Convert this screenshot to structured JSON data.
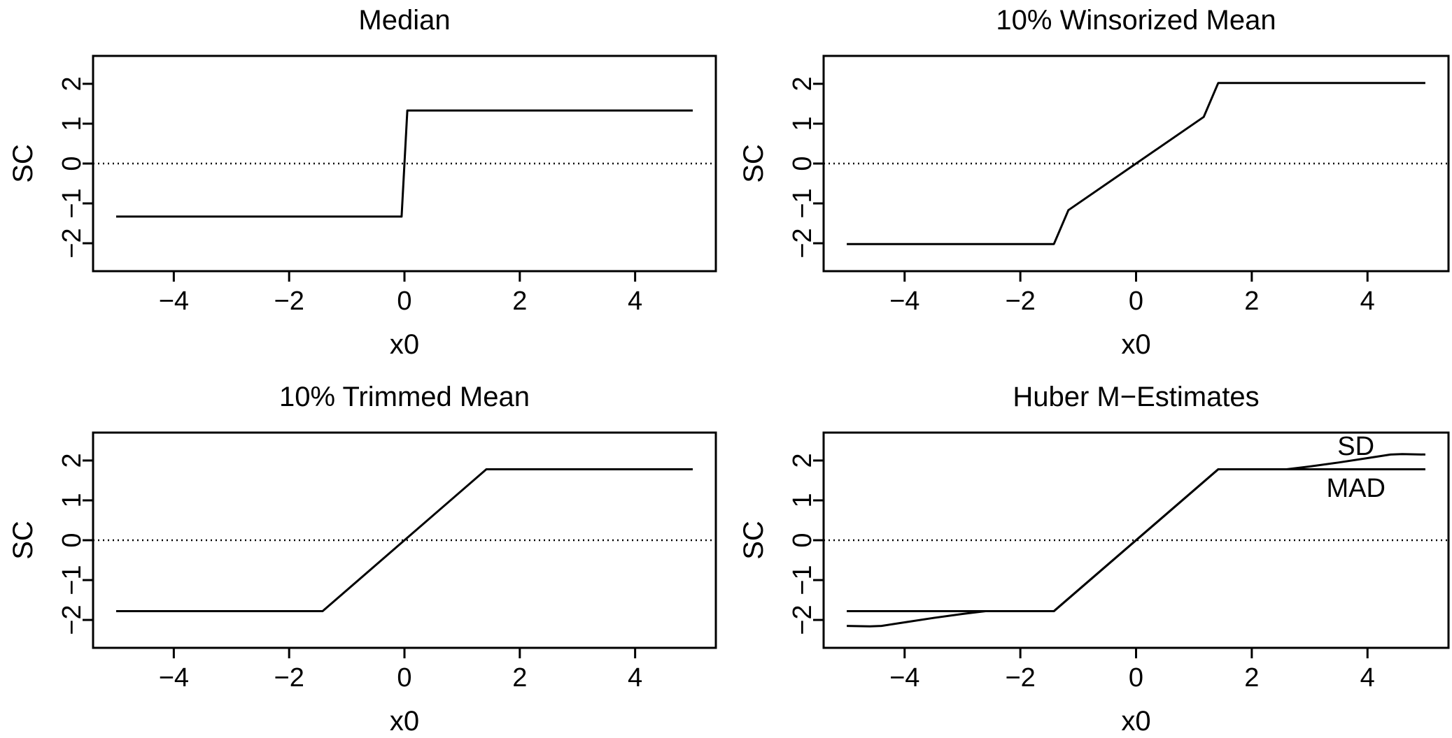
{
  "chart_data": [
    {
      "type": "line",
      "title": "Median",
      "xlabel": "x0",
      "ylabel": "SC",
      "xlim": [
        -5.4,
        5.4
      ],
      "ylim": [
        -2.7,
        2.7
      ],
      "xticks": [
        -4,
        -2,
        0,
        2,
        4
      ],
      "yticks": [
        -2,
        -1,
        0,
        1,
        2
      ],
      "xtick_labels": [
        "−4",
        "−2",
        "0",
        "2",
        "4"
      ],
      "ytick_labels": [
        "−2",
        "−1",
        "0",
        "1",
        "2"
      ],
      "reference_line": {
        "y": 0,
        "style": "dotted"
      },
      "series": [
        {
          "x": [
            -5,
            -0.05,
            0.05,
            5
          ],
          "y": [
            -1.33,
            -1.33,
            1.33,
            1.33
          ]
        }
      ],
      "annotations": []
    },
    {
      "type": "line",
      "title": "10% Winsorized Mean",
      "xlabel": "x0",
      "ylabel": "SC",
      "xlim": [
        -5.4,
        5.4
      ],
      "ylim": [
        -2.7,
        2.7
      ],
      "xticks": [
        -4,
        -2,
        0,
        2,
        4
      ],
      "yticks": [
        -2,
        -1,
        0,
        1,
        2
      ],
      "xtick_labels": [
        "−4",
        "−2",
        "0",
        "2",
        "4"
      ],
      "ytick_labels": [
        "−2",
        "−1",
        "0",
        "1",
        "2"
      ],
      "reference_line": {
        "y": 0,
        "style": "dotted"
      },
      "series": [
        {
          "x": [
            -5,
            -1.42,
            -1.17,
            1.17,
            1.42,
            5
          ],
          "y": [
            -2.02,
            -2.02,
            -1.17,
            1.17,
            2.02,
            2.02
          ]
        }
      ],
      "annotations": []
    },
    {
      "type": "line",
      "title": "10% Trimmed Mean",
      "xlabel": "x0",
      "ylabel": "SC",
      "xlim": [
        -5.4,
        5.4
      ],
      "ylim": [
        -2.7,
        2.7
      ],
      "xticks": [
        -4,
        -2,
        0,
        2,
        4
      ],
      "yticks": [
        -2,
        -1,
        0,
        1,
        2
      ],
      "xtick_labels": [
        "−4",
        "−2",
        "0",
        "2",
        "4"
      ],
      "ytick_labels": [
        "−2",
        "−1",
        "0",
        "1",
        "2"
      ],
      "reference_line": {
        "y": 0,
        "style": "dotted"
      },
      "series": [
        {
          "x": [
            -5,
            -1.42,
            1.42,
            5
          ],
          "y": [
            -1.78,
            -1.78,
            1.78,
            1.78
          ]
        }
      ],
      "annotations": []
    },
    {
      "type": "line",
      "title": "Huber M−Estimates",
      "xlabel": "x0",
      "ylabel": "SC",
      "xlim": [
        -5.4,
        5.4
      ],
      "ylim": [
        -2.7,
        2.7
      ],
      "xticks": [
        -4,
        -2,
        0,
        2,
        4
      ],
      "yticks": [
        -2,
        -1,
        0,
        1,
        2
      ],
      "xtick_labels": [
        "−4",
        "−2",
        "0",
        "2",
        "4"
      ],
      "ytick_labels": [
        "−2",
        "−1",
        "0",
        "1",
        "2"
      ],
      "reference_line": {
        "y": 0,
        "style": "dotted"
      },
      "series": [
        {
          "x": [
            -5,
            -1.42,
            1.42,
            5
          ],
          "y": [
            -1.78,
            -1.78,
            1.78,
            1.78
          ]
        },
        {
          "x": [
            -5,
            -4.6,
            -4.4,
            -4.0,
            -3.5,
            -3.0,
            -2.6,
            -1.42,
            1.42,
            2.6,
            3.0,
            3.5,
            4.0,
            4.4,
            4.6,
            5
          ],
          "y": [
            -2.15,
            -2.16,
            -2.15,
            -2.06,
            -1.95,
            -1.85,
            -1.78,
            -1.78,
            1.78,
            1.78,
            1.85,
            1.95,
            2.06,
            2.15,
            2.16,
            2.15
          ]
        }
      ],
      "annotations": [
        {
          "text": "SD",
          "x": 3.8,
          "y": 2.35
        },
        {
          "text": "MAD",
          "x": 3.8,
          "y": 1.3
        }
      ]
    }
  ]
}
